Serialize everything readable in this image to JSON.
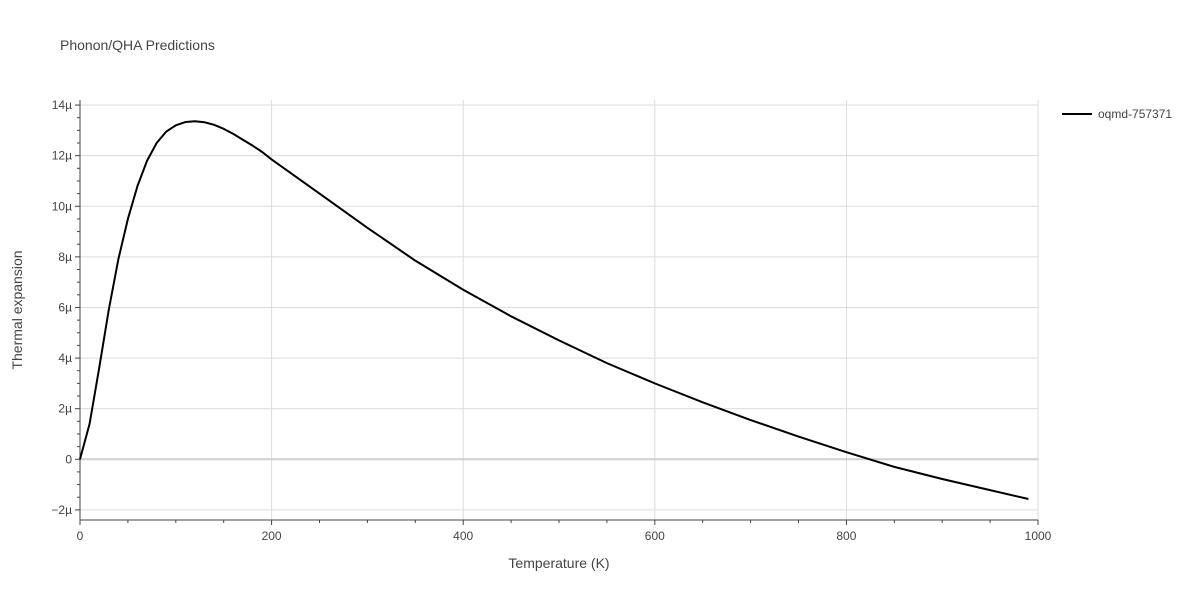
{
  "chart_data": {
    "type": "line",
    "title": "Phonon/QHA Predictions",
    "xlabel": "Temperature (K)",
    "ylabel": "Thermal expansion",
    "xlim": [
      0,
      1000
    ],
    "ylim": [
      -2.4,
      14.2
    ],
    "y_unit_scale": "µ (×1e-6)",
    "x_ticks": [
      0,
      200,
      400,
      600,
      800,
      1000
    ],
    "x_tick_labels": [
      "0",
      "200",
      "400",
      "600",
      "800",
      "1000"
    ],
    "y_ticks": [
      -2,
      0,
      2,
      4,
      6,
      8,
      10,
      12,
      14
    ],
    "y_tick_labels": [
      "−2µ",
      "0",
      "2µ",
      "4µ",
      "6µ",
      "8µ",
      "10µ",
      "12µ",
      "14µ"
    ],
    "grid": true,
    "legend_position": "top-right",
    "series": [
      {
        "name": "oqmd-757371",
        "color": "#000000",
        "x": [
          0,
          10,
          20,
          30,
          40,
          50,
          60,
          70,
          80,
          90,
          100,
          110,
          120,
          130,
          140,
          150,
          160,
          170,
          180,
          190,
          200,
          250,
          300,
          350,
          400,
          450,
          500,
          550,
          600,
          650,
          700,
          750,
          800,
          850,
          900,
          950,
          990
        ],
        "y": [
          0,
          1.4,
          3.6,
          5.9,
          7.9,
          9.5,
          10.8,
          11.8,
          12.5,
          12.95,
          13.2,
          13.33,
          13.36,
          13.32,
          13.22,
          13.06,
          12.86,
          12.63,
          12.4,
          12.15,
          11.85,
          10.5,
          9.15,
          7.85,
          6.7,
          5.65,
          4.7,
          3.8,
          3.0,
          2.25,
          1.55,
          0.9,
          0.28,
          -0.3,
          -0.78,
          -1.22,
          -1.57
        ]
      }
    ]
  }
}
